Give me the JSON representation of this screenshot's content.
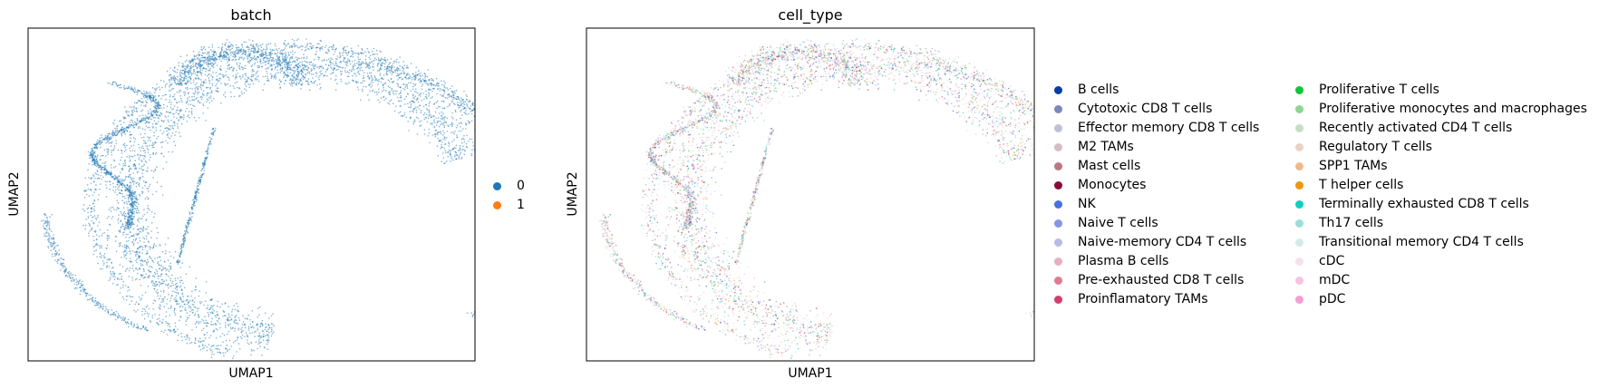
{
  "chart_data": [
    {
      "type": "scatter",
      "title": "batch",
      "xlabel": "UMAP1",
      "ylabel": "UMAP2",
      "grid": false,
      "ticks": "none",
      "legend_placement": "right",
      "legend": [
        {
          "label": "0",
          "color": "#1f77b4"
        },
        {
          "label": "1",
          "color": "#ff7f0e"
        }
      ],
      "dominant_category": "0"
    },
    {
      "type": "scatter",
      "title": "cell_type",
      "xlabel": "UMAP1",
      "ylabel": "UMAP2",
      "grid": false,
      "ticks": "none",
      "legend_placement": "right",
      "legend_columns": 2,
      "legend": [
        {
          "label": "B cells",
          "color": "#023fa5"
        },
        {
          "label": "Cytotoxic CD8 T cells",
          "color": "#7d87b9"
        },
        {
          "label": "Effector memory CD8 T cells",
          "color": "#bec1d4"
        },
        {
          "label": "M2 TAMs",
          "color": "#d6bcc0"
        },
        {
          "label": "Mast cells",
          "color": "#bb7784"
        },
        {
          "label": "Monocytes",
          "color": "#8e063b"
        },
        {
          "label": "NK",
          "color": "#4a6fe3"
        },
        {
          "label": "Naive T cells",
          "color": "#8595e1"
        },
        {
          "label": "Naive-memory CD4 T cells",
          "color": "#b5bbe3"
        },
        {
          "label": "Plasma B cells",
          "color": "#e6afb9"
        },
        {
          "label": "Pre-exhausted CD8 T cells",
          "color": "#e07b91"
        },
        {
          "label": "Proinflamatory TAMs",
          "color": "#d33f6a"
        },
        {
          "label": "Proliferative T cells",
          "color": "#11c638"
        },
        {
          "label": "Proliferative monocytes and macrophages",
          "color": "#8dd593"
        },
        {
          "label": "Recently activated CD4 T cells",
          "color": "#c6dec7"
        },
        {
          "label": "Regulatory T cells",
          "color": "#ead3c6"
        },
        {
          "label": "SPP1 TAMs",
          "color": "#f0b98d"
        },
        {
          "label": "T helper cells",
          "color": "#ef9708"
        },
        {
          "label": "Terminally exhausted CD8 T cells",
          "color": "#0fcfc0"
        },
        {
          "label": "Th17 cells",
          "color": "#9cded6"
        },
        {
          "label": "Transitional memory CD4 T cells",
          "color": "#d5eae7"
        },
        {
          "label": "cDC",
          "color": "#f3e1eb"
        },
        {
          "label": "mDC",
          "color": "#f6c4e1"
        },
        {
          "label": "pDC",
          "color": "#f79cd4"
        }
      ]
    }
  ]
}
